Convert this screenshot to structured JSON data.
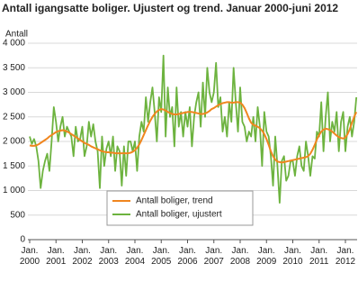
{
  "chart_data": {
    "type": "line",
    "title": "Antall igangsatte boliger. Ujustert og trend. Januar 2000-juni 2012",
    "y_label": "Antall",
    "categories": [
      "Jan. 2000",
      null,
      null,
      null,
      null,
      null,
      null,
      null,
      null,
      null,
      null,
      null,
      "Jan. 2001",
      null,
      null,
      null,
      null,
      null,
      null,
      null,
      null,
      null,
      null,
      null,
      "Jan. 2002",
      null,
      null,
      null,
      null,
      null,
      null,
      null,
      null,
      null,
      null,
      null,
      "Jan. 2003",
      null,
      null,
      null,
      null,
      null,
      null,
      null,
      null,
      null,
      null,
      null,
      "Jan. 2004",
      null,
      null,
      null,
      null,
      null,
      null,
      null,
      null,
      null,
      null,
      null,
      "Jan. 2005",
      null,
      null,
      null,
      null,
      null,
      null,
      null,
      null,
      null,
      null,
      null,
      "Jan. 2006",
      null,
      null,
      null,
      null,
      null,
      null,
      null,
      null,
      null,
      null,
      null,
      "Jan. 2007",
      null,
      null,
      null,
      null,
      null,
      null,
      null,
      null,
      null,
      null,
      null,
      "Jan. 2008",
      null,
      null,
      null,
      null,
      null,
      null,
      null,
      null,
      null,
      null,
      null,
      "Jan. 2009",
      null,
      null,
      null,
      null,
      null,
      null,
      null,
      null,
      null,
      null,
      null,
      "Jan. 2010",
      null,
      null,
      null,
      null,
      null,
      null,
      null,
      null,
      null,
      null,
      null,
      "Jan. 2011",
      null,
      null,
      null,
      null,
      null,
      null,
      null,
      null,
      null,
      null,
      null,
      "Jan. 2012",
      null,
      null,
      null,
      null,
      null
    ],
    "series": [
      {
        "name": "Antall boliger, ujustert",
        "color": "#6db33f",
        "values": [
          2100,
          1950,
          2050,
          1900,
          1600,
          1050,
          1400,
          1600,
          1750,
          1400,
          2000,
          2700,
          2400,
          2000,
          2300,
          2500,
          2100,
          2300,
          2200,
          2100,
          1700,
          2300,
          2000,
          2050,
          2300,
          1700,
          1900,
          2400,
          2100,
          2350,
          2000,
          1800,
          1050,
          2100,
          1500,
          1850,
          2000,
          1700,
          2100,
          1400,
          1900,
          1800,
          1100,
          1900,
          1300,
          2000,
          2000,
          1800,
          2000,
          1400,
          2100,
          2400,
          2200,
          2900,
          2400,
          2800,
          3100,
          2600,
          2000,
          2900,
          2600,
          3750,
          2100,
          3100,
          2500,
          2700,
          1900,
          3100,
          2300,
          2600,
          2100,
          2600,
          2300,
          2700,
          1900,
          2500,
          2800,
          3000,
          2300,
          3200,
          2500,
          3500,
          3000,
          2800,
          3000,
          3600,
          2700,
          2900,
          2200,
          2500,
          2100,
          2800,
          2400,
          3500,
          2800,
          2200,
          3100,
          2400,
          2300,
          2000,
          2200,
          2100,
          2500,
          2000,
          2700,
          2300,
          1500,
          2600,
          2200,
          2100,
          1700,
          1100,
          2100,
          1500,
          750,
          1600,
          1700,
          1200,
          1300,
          1600,
          1600,
          1300,
          1700,
          1900,
          1500,
          1400,
          2000,
          1700,
          1300,
          1700,
          1650,
          2200,
          2100,
          2800,
          1800,
          2500,
          3000,
          2000,
          2400,
          2200,
          2600,
          1800,
          2400,
          2600,
          1800,
          2300,
          2500,
          2100,
          2400,
          2900
        ]
      },
      {
        "name": "Antall boliger, trend",
        "color": "#f0861f",
        "values": [
          1920,
          1910,
          1910,
          1920,
          1940,
          1970,
          2000,
          2030,
          2060,
          2100,
          2130,
          2160,
          2190,
          2210,
          2220,
          2230,
          2220,
          2200,
          2180,
          2150,
          2120,
          2090,
          2060,
          2030,
          2000,
          1970,
          1950,
          1930,
          1900,
          1880,
          1860,
          1840,
          1820,
          1800,
          1790,
          1780,
          1780,
          1770,
          1770,
          1760,
          1760,
          1760,
          1760,
          1760,
          1760,
          1760,
          1770,
          1790,
          1820,
          1870,
          1940,
          2030,
          2130,
          2230,
          2330,
          2420,
          2500,
          2560,
          2610,
          2640,
          2660,
          2650,
          2630,
          2600,
          2580,
          2560,
          2550,
          2550,
          2560,
          2570,
          2580,
          2590,
          2600,
          2600,
          2600,
          2590,
          2580,
          2570,
          2560,
          2560,
          2570,
          2590,
          2620,
          2660,
          2680,
          2710,
          2740,
          2760,
          2780,
          2790,
          2800,
          2800,
          2790,
          2790,
          2800,
          2800,
          2790,
          2750,
          2680,
          2580,
          2470,
          2380,
          2340,
          2320,
          2300,
          2270,
          2220,
          2150,
          2050,
          1930,
          1800,
          1700,
          1630,
          1590,
          1580,
          1570,
          1580,
          1590,
          1600,
          1610,
          1620,
          1630,
          1640,
          1650,
          1660,
          1670,
          1680,
          1700,
          1750,
          1830,
          1930,
          2040,
          2130,
          2200,
          2240,
          2260,
          2250,
          2230,
          2200,
          2160,
          2120,
          2090,
          2070,
          2060,
          2080,
          2150,
          2250,
          2380,
          2500,
          2600
        ]
      }
    ],
    "legend_order": [
      1,
      0
    ],
    "ylim": [
      0,
      4000
    ],
    "yticks": [
      0,
      500,
      {
        "value": 1000,
        "label": "1 000"
      },
      {
        "value": 1500,
        "label": "1 500"
      },
      {
        "value": 2000,
        "label": "2 000"
      },
      {
        "value": 2500,
        "label": "2 500"
      },
      {
        "value": 3000,
        "label": "3 000"
      },
      {
        "value": 3500,
        "label": "3 500"
      },
      {
        "value": 4000,
        "label": "4 000"
      }
    ],
    "grid": true
  }
}
